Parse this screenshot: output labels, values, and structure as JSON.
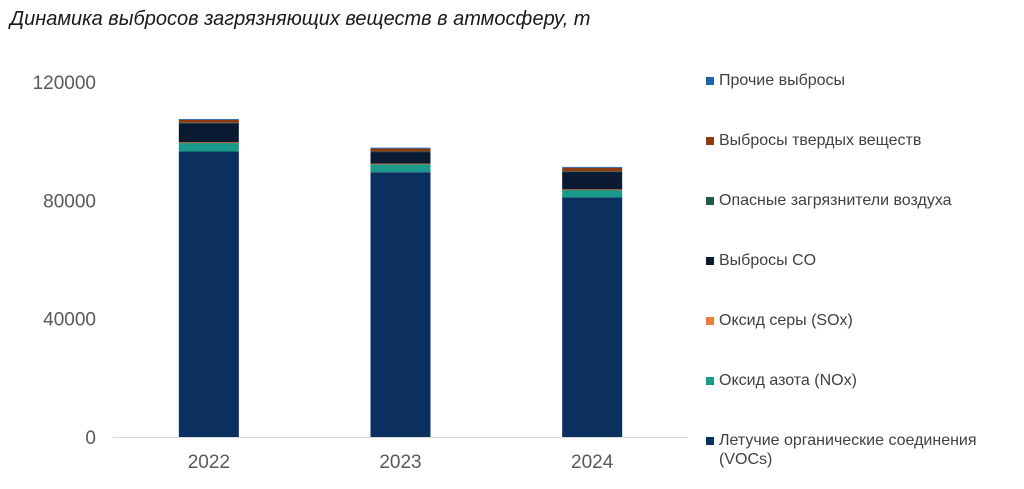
{
  "chart_data": {
    "type": "bar",
    "stacked": true,
    "title": "Динамика выбросов загрязняющих веществ в атмосферу, т",
    "xlabel": "",
    "ylabel": "",
    "categories": [
      "2022",
      "2023",
      "2024"
    ],
    "ylim": [
      0,
      120000
    ],
    "yticks": [
      "0",
      "40000",
      "80000",
      "120000"
    ],
    "grid": false,
    "legend_position": "right",
    "series": [
      {
        "name": "Летучие органические соединения (VOCs)",
        "color": "#0b2f5e",
        "values": [
          96500,
          89500,
          81000
        ]
      },
      {
        "name": "Оксид азота (NOx)",
        "color": "#1a9a8a",
        "values": [
          3000,
          2800,
          2600
        ]
      },
      {
        "name": "Оксид серы (SOx)",
        "color": "#e67e36",
        "values": [
          100,
          100,
          100
        ]
      },
      {
        "name": "Выбросы CO",
        "color": "#0a1a33",
        "values": [
          6500,
          4000,
          6000
        ]
      },
      {
        "name": "Опасные загрязнители воздуха",
        "color": "#1e5a4a",
        "values": [
          100,
          100,
          100
        ]
      },
      {
        "name": "Выбросы твердых веществ",
        "color": "#8b3a12",
        "values": [
          1000,
          1000,
          1200
        ]
      },
      {
        "name": "Прочие выбросы",
        "color": "#1f63a8",
        "values": [
          300,
          300,
          300
        ]
      }
    ]
  }
}
